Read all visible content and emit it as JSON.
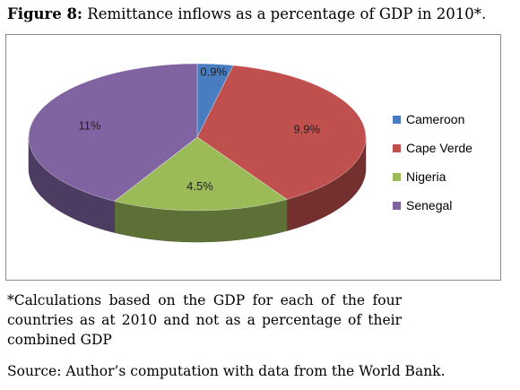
{
  "caption": {
    "label": "Figure 8:",
    "text": " Remittance inflows as a percentage of GDP in 2010*."
  },
  "chart_data": {
    "type": "pie",
    "categories": [
      "Cameroon",
      "Cape Verde",
      "Nigeria",
      "Senegal"
    ],
    "values": [
      0.9,
      9.9,
      4.5,
      11
    ],
    "labels": [
      "0.9%",
      "9.9%",
      "4.5%",
      "11%"
    ],
    "colors": [
      "#4a7dbf",
      "#c0504d",
      "#9bbb59",
      "#8064a2"
    ],
    "style": "3d",
    "legend": "right"
  },
  "note": {
    "lines": [
      "*Calculations based on the GDP for each of the four",
      "countries as at 2010 and not as a percentage of their",
      "combined GDP"
    ]
  },
  "source": "Source: Author’s computation with data from the World Bank."
}
